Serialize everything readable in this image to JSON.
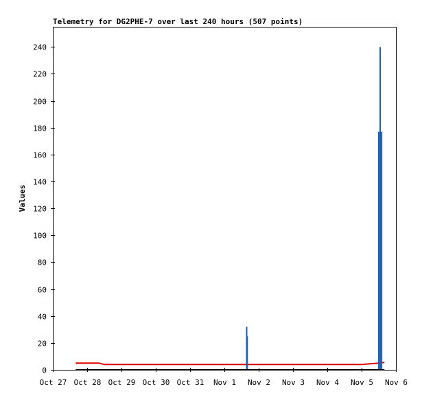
{
  "chart_data": {
    "type": "line",
    "title": "Telemetry for DG2PHE-7 over last 240 hours (507 points)",
    "xlabel": "",
    "ylabel": "Values",
    "x_ticks": [
      "Oct 27",
      "Oct 28",
      "Oct 29",
      "Oct 30",
      "Oct 31",
      "Nov 1",
      "Nov 2",
      "Nov 3",
      "Nov 4",
      "Nov 5",
      "Nov 6"
    ],
    "xlim": [
      "Oct 27",
      "Nov 6"
    ],
    "y_ticks": [
      0,
      20,
      40,
      60,
      80,
      100,
      120,
      140,
      160,
      180,
      200,
      220,
      240
    ],
    "ylim": [
      0,
      255
    ],
    "grid": false,
    "legend": "none",
    "series": [
      {
        "color": "#dd0000",
        "points": [
          [
            "Oct 27 16:00",
            5
          ],
          [
            "Oct 28 08:00",
            5
          ],
          [
            "Oct 28 12:00",
            4
          ],
          [
            "Oct 29 12:00",
            4
          ],
          [
            "Oct 31 12:00",
            4
          ],
          [
            "Nov 1 12:00",
            4
          ],
          [
            "Nov 2 12:00",
            4
          ],
          [
            "Nov 3 12:00",
            4
          ],
          [
            "Nov 4 12:00",
            4
          ],
          [
            "Nov 5 00:00",
            4
          ],
          [
            "Nov 5 06:00",
            4.5
          ],
          [
            "Nov 5 12:00",
            5
          ],
          [
            "Nov 5 16:00",
            5.5
          ]
        ]
      },
      {
        "color": "#1a5fb4",
        "style": "spikes",
        "points": [
          [
            "Nov 1 15:36",
            32
          ],
          [
            "Nov 1 16:00",
            25
          ],
          [
            "Nov 5 12:00",
            177
          ],
          [
            "Nov 5 13:00",
            240
          ],
          [
            "Nov 5 14:00",
            177
          ]
        ]
      },
      {
        "color": "#000000",
        "points": [
          [
            "Oct 27 16:00",
            0
          ],
          [
            "Nov 5 16:00",
            0
          ]
        ]
      }
    ]
  }
}
